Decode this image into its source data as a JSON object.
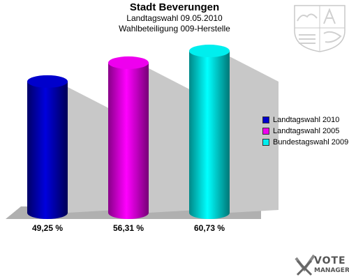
{
  "header": {
    "title": "Stadt Beverungen",
    "subtitle1": "Landtagswahl 09.05.2010",
    "subtitle2": "Wahlbeteiligung 009-Herstelle"
  },
  "chart_data": {
    "type": "bar",
    "categories": [
      "Landtagswahl 2010",
      "Landtagswahl 2005",
      "Bundestagswahl 2009"
    ],
    "values": [
      49.25,
      56.31,
      60.73
    ],
    "value_labels": [
      "49,25 %",
      "56,31 %",
      "60,73 %"
    ],
    "colors": [
      "#0000cc",
      "#ee00ee",
      "#00eeee"
    ],
    "ylim": [
      0,
      70
    ],
    "legend": "right",
    "grid": false
  },
  "logo": {
    "line1": "VOTE",
    "line2": "MANAGER"
  }
}
